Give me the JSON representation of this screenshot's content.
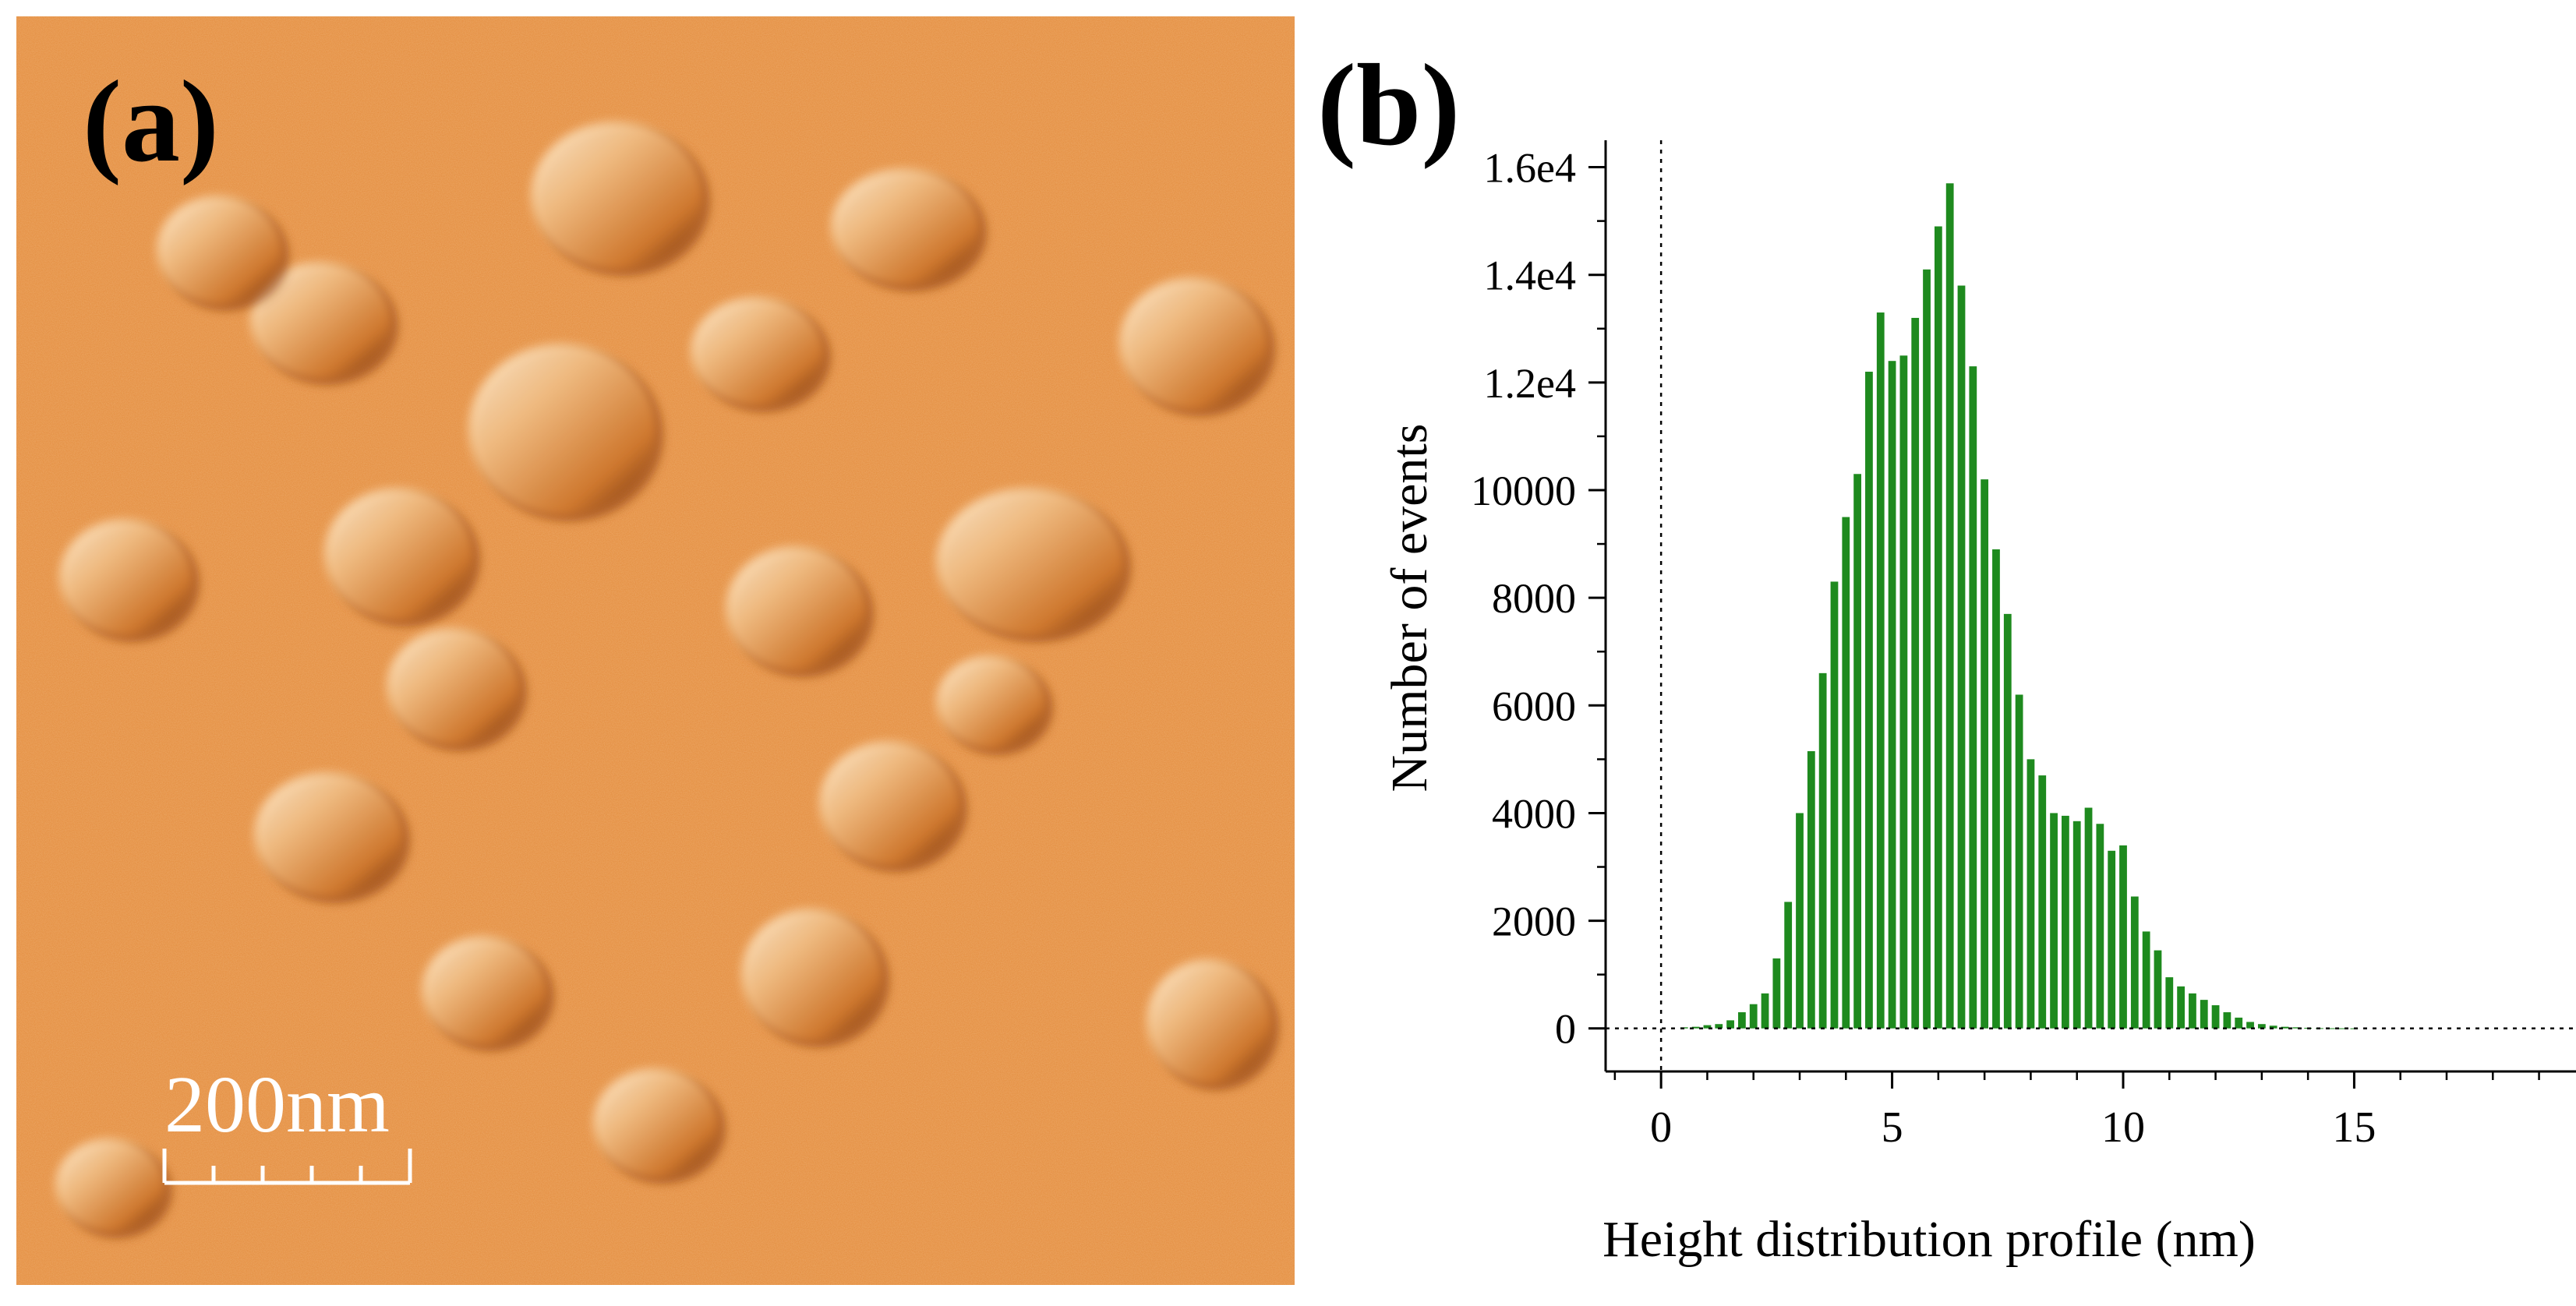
{
  "panels": {
    "a": {
      "letter": "(a)",
      "scale_bar_label": "200nm",
      "scale_bar_ticks": 5
    },
    "b": {
      "letter": "(b)"
    }
  },
  "colors": {
    "afm_base": "#e38b3c",
    "afm_highlight": "#fff1d9",
    "afm_shadow": "#4a1a05",
    "bar": "#1e8a1e",
    "axis": "#000000"
  },
  "chart_data": {
    "type": "bar",
    "title": "",
    "xlabel": "Height distribution profile (nm)",
    "ylabel": "Number of events",
    "xlim": [
      -1.2,
      19.8
    ],
    "ylim": [
      -800,
      16500
    ],
    "xticks": [
      0,
      5,
      10,
      15
    ],
    "xtick_labels": [
      "0",
      "5",
      "10",
      "15"
    ],
    "yticks": [
      0,
      2000,
      4000,
      6000,
      8000,
      10000,
      12000,
      14000,
      16000
    ],
    "ytick_labels": [
      "0",
      "2000",
      "4000",
      "6000",
      "8000",
      "10000",
      "1.2e4",
      "1.4e4",
      "1.6e4"
    ],
    "bin_width": 0.25,
    "x": [
      0.5,
      0.75,
      1.0,
      1.25,
      1.5,
      1.75,
      2.0,
      2.25,
      2.5,
      2.75,
      3.0,
      3.25,
      3.5,
      3.75,
      4.0,
      4.25,
      4.5,
      4.75,
      5.0,
      5.25,
      5.5,
      5.75,
      6.0,
      6.25,
      6.5,
      6.75,
      7.0,
      7.25,
      7.5,
      7.75,
      8.0,
      8.25,
      8.5,
      8.75,
      9.0,
      9.25,
      9.5,
      9.75,
      10.0,
      10.25,
      10.5,
      10.75,
      11.0,
      11.25,
      11.5,
      11.75,
      12.0,
      12.25,
      12.5,
      12.75,
      13.0,
      13.25,
      13.5,
      13.75,
      14.0,
      14.25,
      14.5,
      14.75,
      15.0,
      15.25,
      15.5,
      15.75,
      16.0,
      16.25,
      16.5,
      16.75,
      17.0,
      17.25,
      17.5,
      17.75,
      18.0,
      18.25,
      18.5,
      18.75,
      19.0,
      19.25
    ],
    "values": [
      20,
      30,
      60,
      80,
      150,
      300,
      450,
      650,
      1300,
      2350,
      4000,
      5150,
      6600,
      8300,
      9500,
      10300,
      12200,
      13300,
      12400,
      12500,
      13200,
      14100,
      14900,
      15700,
      13800,
      12300,
      10200,
      8900,
      7700,
      6200,
      5000,
      4700,
      4000,
      3950,
      3850,
      4100,
      3800,
      3300,
      3400,
      2450,
      1800,
      1450,
      950,
      780,
      650,
      530,
      430,
      300,
      200,
      120,
      80,
      50,
      30,
      20,
      10,
      5,
      3,
      2,
      1,
      0,
      0,
      0,
      0,
      0,
      0,
      0,
      0,
      0,
      0,
      0,
      0,
      0,
      0,
      0,
      0,
      0
    ],
    "reference_lines": [
      {
        "axis": "x",
        "value": 0,
        "style": "dotted"
      },
      {
        "axis": "y",
        "value": 0,
        "style": "dotted"
      }
    ]
  }
}
